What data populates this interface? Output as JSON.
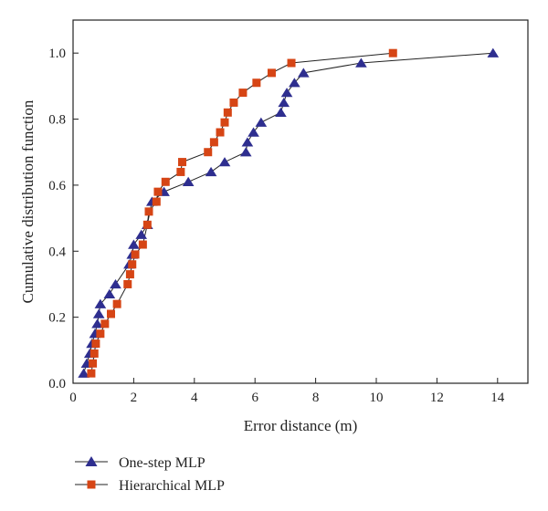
{
  "chart_data": {
    "type": "line",
    "xlabel": "Error distance (m)",
    "ylabel": "Cumulative distribution function",
    "xlim": [
      0,
      15
    ],
    "ylim": [
      0,
      1.1
    ],
    "xticks": [
      0,
      2,
      4,
      6,
      8,
      10,
      12,
      14
    ],
    "yticks": [
      0.0,
      0.2,
      0.4,
      0.6,
      0.8,
      1.0
    ],
    "xtick_labels": [
      "0",
      "2",
      "4",
      "6",
      "8",
      "10",
      "12",
      "14"
    ],
    "ytick_labels": [
      "0.0",
      "0.2",
      "0.4",
      "0.6",
      "0.8",
      "1.0"
    ],
    "grid": false,
    "legend_position": "bottom-left, below plot",
    "series": [
      {
        "name": "One-step MLP",
        "marker": "triangle",
        "color": "#2e2e8f",
        "x": [
          0.35,
          0.45,
          0.55,
          0.62,
          0.72,
          0.8,
          0.85,
          0.9,
          1.2,
          1.4,
          1.85,
          1.95,
          2.0,
          2.25,
          2.45,
          2.6,
          3.0,
          3.8,
          4.55,
          5.0,
          5.7,
          5.75,
          5.95,
          6.2,
          6.85,
          6.95,
          7.05,
          7.3,
          7.6,
          9.5,
          13.85
        ],
        "y": [
          0.03,
          0.06,
          0.09,
          0.12,
          0.15,
          0.18,
          0.21,
          0.24,
          0.27,
          0.3,
          0.36,
          0.39,
          0.42,
          0.45,
          0.48,
          0.55,
          0.58,
          0.61,
          0.64,
          0.67,
          0.7,
          0.73,
          0.76,
          0.79,
          0.82,
          0.85,
          0.88,
          0.91,
          0.94,
          0.97,
          1.0
        ]
      },
      {
        "name": "Hierarchical MLP",
        "marker": "square",
        "color": "#d64515",
        "x": [
          0.6,
          0.65,
          0.7,
          0.75,
          0.9,
          1.05,
          1.25,
          1.45,
          1.8,
          1.88,
          1.95,
          2.05,
          2.3,
          2.45,
          2.5,
          2.75,
          2.8,
          3.05,
          3.55,
          3.6,
          4.45,
          4.65,
          4.85,
          5.0,
          5.1,
          5.3,
          5.6,
          6.05,
          6.55,
          7.2,
          10.55
        ],
        "y": [
          0.03,
          0.06,
          0.09,
          0.12,
          0.15,
          0.18,
          0.21,
          0.24,
          0.3,
          0.33,
          0.36,
          0.39,
          0.42,
          0.48,
          0.52,
          0.55,
          0.58,
          0.61,
          0.64,
          0.67,
          0.7,
          0.73,
          0.76,
          0.79,
          0.82,
          0.85,
          0.88,
          0.91,
          0.94,
          0.97,
          1.0
        ]
      }
    ]
  }
}
